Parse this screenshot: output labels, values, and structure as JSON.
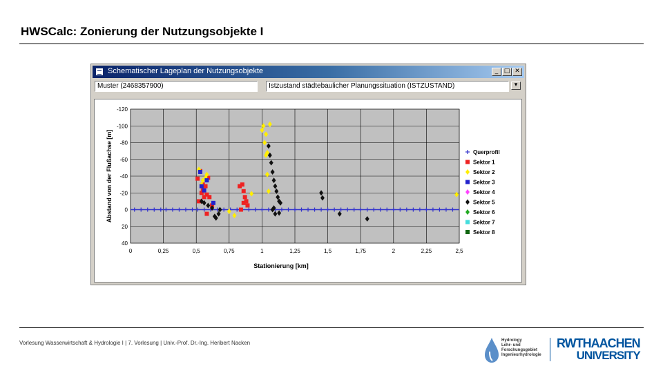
{
  "slide": {
    "title": "HWSCalc: Zonierung der Nutzungsobjekte I",
    "footer": "Vorlesung Wasserwirtschaft & Hydrologie I | 7. Vorlesung | Univ.-Prof. Dr.-Ing. Heribert Nacken"
  },
  "window": {
    "title": "Schematischer Lageplan der Nutzungsobjekte",
    "field_left": "Muster (2468357900)",
    "field_right": "Istzustand städtebaulicher Planungssituation (ISTZUSTAND)"
  },
  "logos": {
    "hydro": [
      "Hydrology",
      "Lehr- und",
      "Forschungsgebiet",
      "Ingenieurhydrologie"
    ],
    "rwth_line1": "RWTHAACHEN",
    "rwth_line2": "UNIVERSITY",
    "rwth_color": "#00549f"
  },
  "chart_data": {
    "type": "scatter",
    "title": "",
    "xlabel": "Stationierung [km]",
    "ylabel": "Abstand von der Flußachse [m]",
    "xlim": [
      0,
      2.5
    ],
    "ylim": [
      40,
      -120
    ],
    "x_ticks": [
      0,
      0.25,
      0.5,
      0.75,
      1,
      1.25,
      1.5,
      1.75,
      2,
      2.25,
      2.5
    ],
    "x_tick_labels": [
      "0",
      "0,25",
      "0,5",
      "0,75",
      "1",
      "1,25",
      "1,5",
      "1,75",
      "2",
      "2,25",
      "2,5"
    ],
    "y_ticks": [
      -120,
      -100,
      -80,
      -60,
      -40,
      -20,
      0,
      20,
      40
    ],
    "y_tick_labels": [
      "-120",
      "-100",
      "-80",
      "-60",
      "-40",
      "-20",
      "0",
      "20",
      "40"
    ],
    "grid": true,
    "legend_position": "right",
    "series": [
      {
        "name": "Querprofil",
        "color": "#3333cc",
        "marker": "plus",
        "x": [
          0.03,
          0.08,
          0.13,
          0.18,
          0.23,
          0.27,
          0.32,
          0.37,
          0.42,
          0.47,
          0.51,
          0.56,
          0.61,
          0.66,
          0.71,
          0.76,
          0.81,
          0.85,
          0.9,
          0.95,
          1.0,
          1.05,
          1.1,
          1.15,
          1.2,
          1.25,
          1.3,
          1.35,
          1.4,
          1.45,
          1.5,
          1.55,
          1.6,
          1.65,
          1.7,
          1.75,
          1.8,
          1.85,
          1.9,
          1.95,
          2.0,
          2.05,
          2.1,
          2.15,
          2.2,
          2.25,
          2.3,
          2.35,
          2.4,
          2.45
        ],
        "y": [
          0,
          0,
          0,
          0,
          0,
          0,
          0,
          0,
          0,
          0,
          0,
          0,
          0,
          0,
          0,
          0,
          0,
          0,
          0,
          0,
          0,
          0,
          0,
          0,
          0,
          0,
          0,
          0,
          0,
          0,
          0,
          0,
          0,
          0,
          0,
          0,
          0,
          0,
          0,
          0,
          0,
          0,
          0,
          0,
          0,
          0,
          0,
          0,
          0,
          0
        ]
      },
      {
        "name": "Sektor 1",
        "color": "#ee2222",
        "marker": "square",
        "x": [
          0.51,
          0.53,
          0.55,
          0.57,
          0.59,
          0.52,
          0.56,
          0.58,
          0.54,
          0.55,
          0.6,
          0.62,
          0.58,
          0.83,
          0.85,
          0.86,
          0.87,
          0.88,
          0.84,
          0.89,
          0.86
        ],
        "y": [
          -37,
          -46,
          -30,
          -28,
          -38,
          -10,
          -15,
          -18,
          -20,
          -23,
          -15,
          -5,
          5,
          -28,
          -30,
          -22,
          -15,
          -10,
          0,
          -5,
          -8
        ]
      },
      {
        "name": "Sektor 2",
        "color": "#ffee00",
        "marker": "diamond",
        "x": [
          0.52,
          0.54,
          0.55,
          0.57,
          0.58,
          0.75,
          0.79,
          1.0,
          1.01,
          1.02,
          1.03,
          1.04,
          1.05,
          1.06,
          1.03,
          1.04,
          0.92,
          2.48
        ],
        "y": [
          -48,
          -30,
          -35,
          -38,
          -42,
          2,
          7,
          -95,
          -100,
          -80,
          -65,
          -42,
          -22,
          -102,
          -90,
          -68,
          -19,
          -18
        ]
      },
      {
        "name": "Sektor 3",
        "color": "#2222cc",
        "marker": "square",
        "x": [
          0.53,
          0.54,
          0.56,
          0.58,
          0.63
        ],
        "y": [
          -45,
          -28,
          -23,
          -35,
          -8
        ]
      },
      {
        "name": "Sektor 4",
        "color": "#ff44ff",
        "marker": "diamond",
        "x": [],
        "y": []
      },
      {
        "name": "Sektor 5",
        "color": "#111111",
        "marker": "diamond",
        "x": [
          0.54,
          0.56,
          0.59,
          0.62,
          0.64,
          0.65,
          0.67,
          0.68,
          1.05,
          1.06,
          1.07,
          1.08,
          1.09,
          1.1,
          1.11,
          1.12,
          1.13,
          1.14,
          1.08,
          1.09,
          1.1,
          1.13,
          1.45,
          1.46,
          1.59,
          1.8
        ],
        "y": [
          -10,
          -8,
          -5,
          -2,
          8,
          10,
          5,
          0,
          -76,
          -65,
          -56,
          -45,
          -35,
          -28,
          -22,
          -15,
          -10,
          -8,
          0,
          -2,
          5,
          4,
          -20,
          -14,
          5,
          11
        ]
      },
      {
        "name": "Sektor 6",
        "color": "#22aa22",
        "marker": "diamond",
        "x": [],
        "y": []
      },
      {
        "name": "Sektor 7",
        "color": "#44dddd",
        "marker": "square",
        "x": [],
        "y": []
      },
      {
        "name": "Sektor 8",
        "color": "#116611",
        "marker": "square",
        "x": [],
        "y": []
      }
    ]
  }
}
